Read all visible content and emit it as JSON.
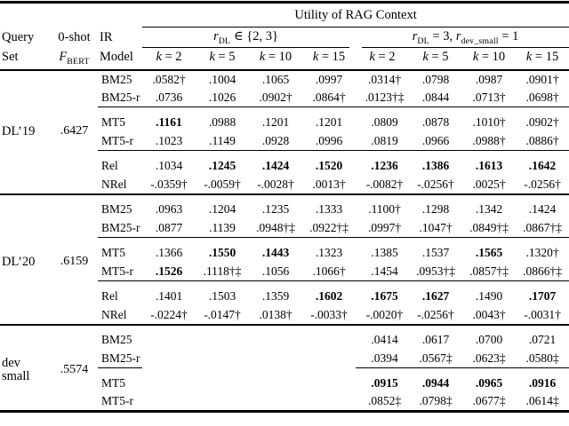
{
  "table": {
    "spanner": "Utility of RAG Context",
    "header": {
      "query": "Query",
      "set": "Set",
      "zeroshot": "0-shot",
      "fbert_var": "F",
      "fbert_sub": "BERT",
      "ir": "IR",
      "model": "Model",
      "group1": {
        "r": "r",
        "sub": "DL",
        "rest": " ∈ {2, 3}"
      },
      "group2": {
        "r": "r",
        "sub": "DL",
        "mid": " = 3, ",
        "r2": "r",
        "sub2": "dev_small",
        "rest": " = 1"
      },
      "k_cols": [
        {
          "k": "k",
          "eq": " = 2"
        },
        {
          "k": "k",
          "eq": " = 5"
        },
        {
          "k": "k",
          "eq": " = 10"
        },
        {
          "k": "k",
          "eq": " = 15"
        },
        {
          "k": "k",
          "eq": " = 2"
        },
        {
          "k": "k",
          "eq": " = 5"
        },
        {
          "k": "k",
          "eq": " = 10"
        },
        {
          "k": "k",
          "eq": " = 15"
        }
      ]
    },
    "blocks": [
      {
        "query_lines": [
          "DL’19"
        ],
        "fbert": ".6427",
        "split_rule": false,
        "subgroups": [
          {
            "rows": [
              {
                "model": "BM25",
                "values": [
                  ".0582†",
                  ".1004",
                  ".1065",
                  ".0997",
                  ".0314†",
                  ".0798",
                  ".0987",
                  ".0901†"
                ],
                "bold": []
              },
              {
                "model": "BM25-r",
                "values": [
                  ".0736",
                  ".1026",
                  ".0902†",
                  ".0864†",
                  ".0123†‡",
                  ".0844",
                  ".0713†",
                  ".0698†"
                ],
                "bold": []
              }
            ]
          },
          {
            "rows": [
              {
                "model": "MT5",
                "values": [
                  ".1161",
                  ".0988",
                  ".1201",
                  ".1201",
                  ".0809",
                  ".0878",
                  ".1010†",
                  ".0902†"
                ],
                "bold": [
                  0
                ]
              },
              {
                "model": "MT5-r",
                "values": [
                  ".1023",
                  ".1149",
                  ".0928",
                  ".0996",
                  ".0819",
                  ".0966",
                  ".0988†",
                  ".0886†"
                ],
                "bold": []
              }
            ]
          },
          {
            "rows": [
              {
                "model": "Rel",
                "values": [
                  ".1034",
                  ".1245",
                  ".1424",
                  ".1520",
                  ".1236",
                  ".1386",
                  ".1613",
                  ".1642"
                ],
                "bold": [
                  1,
                  2,
                  3,
                  4,
                  5,
                  6,
                  7
                ]
              },
              {
                "model": "NRel",
                "values": [
                  "-.0359†",
                  "-.0059†",
                  "-.0028†",
                  ".0013†",
                  "-.0082†",
                  "-.0256†",
                  ".0025†",
                  "-.0256†"
                ],
                "bold": []
              }
            ]
          }
        ]
      },
      {
        "query_lines": [
          "DL’20"
        ],
        "fbert": ".6159",
        "split_rule": false,
        "subgroups": [
          {
            "rows": [
              {
                "model": "BM25",
                "values": [
                  ".0963",
                  ".1204",
                  ".1235",
                  ".1333",
                  ".1100†",
                  ".1298",
                  ".1342",
                  ".1424"
                ],
                "bold": []
              },
              {
                "model": "BM25-r",
                "values": [
                  ".0877",
                  ".1139",
                  ".0948†‡",
                  ".0922†‡",
                  ".0997†",
                  ".1047†",
                  ".0849†‡",
                  ".0867†‡"
                ],
                "bold": []
              }
            ]
          },
          {
            "rows": [
              {
                "model": "MT5",
                "values": [
                  ".1366",
                  ".1550",
                  ".1443",
                  ".1323",
                  ".1385",
                  ".1537",
                  ".1565",
                  ".1320†"
                ],
                "bold": [
                  1,
                  2,
                  6
                ]
              },
              {
                "model": "MT5-r",
                "values": [
                  ".1526",
                  ".1118†‡",
                  ".1056",
                  ".1066†",
                  ".1454",
                  ".0953†‡",
                  ".0857†‡",
                  ".0866†‡"
                ],
                "bold": [
                  0
                ]
              }
            ]
          },
          {
            "rows": [
              {
                "model": "Rel",
                "values": [
                  ".1401",
                  ".1503",
                  ".1359",
                  ".1602",
                  ".1675",
                  ".1627",
                  ".1490",
                  ".1707"
                ],
                "bold": [
                  3,
                  4,
                  5,
                  7
                ]
              },
              {
                "model": "NRel",
                "values": [
                  "-.0224†",
                  "-.0147†",
                  ".0138†",
                  "-.0033†",
                  "-.0020†",
                  "-.0256†",
                  ".0043†",
                  "-.0031†"
                ],
                "bold": []
              }
            ]
          }
        ]
      },
      {
        "query_lines": [
          "dev",
          "small"
        ],
        "fbert": ".5574",
        "split_rule": true,
        "subgroups": [
          {
            "rows": [
              {
                "model": "BM25",
                "values": [
                  "",
                  "",
                  "",
                  "",
                  ".0414",
                  ".0617",
                  ".0700",
                  ".0721"
                ],
                "bold": []
              },
              {
                "model": "BM25-r",
                "values": [
                  "",
                  "",
                  "",
                  "",
                  ".0394",
                  ".0567‡",
                  ".0623‡",
                  ".0580‡"
                ],
                "bold": []
              }
            ]
          },
          {
            "rows": [
              {
                "model": "MT5",
                "values": [
                  "",
                  "",
                  "",
                  "",
                  ".0915",
                  ".0944",
                  ".0965",
                  ".0916"
                ],
                "bold": [
                  4,
                  5,
                  6,
                  7
                ]
              },
              {
                "model": "MT5-r",
                "values": [
                  "",
                  "",
                  "",
                  "",
                  ".0852‡",
                  ".0798‡",
                  ".0677‡",
                  ".0614‡"
                ],
                "bold": []
              }
            ]
          }
        ]
      }
    ]
  }
}
